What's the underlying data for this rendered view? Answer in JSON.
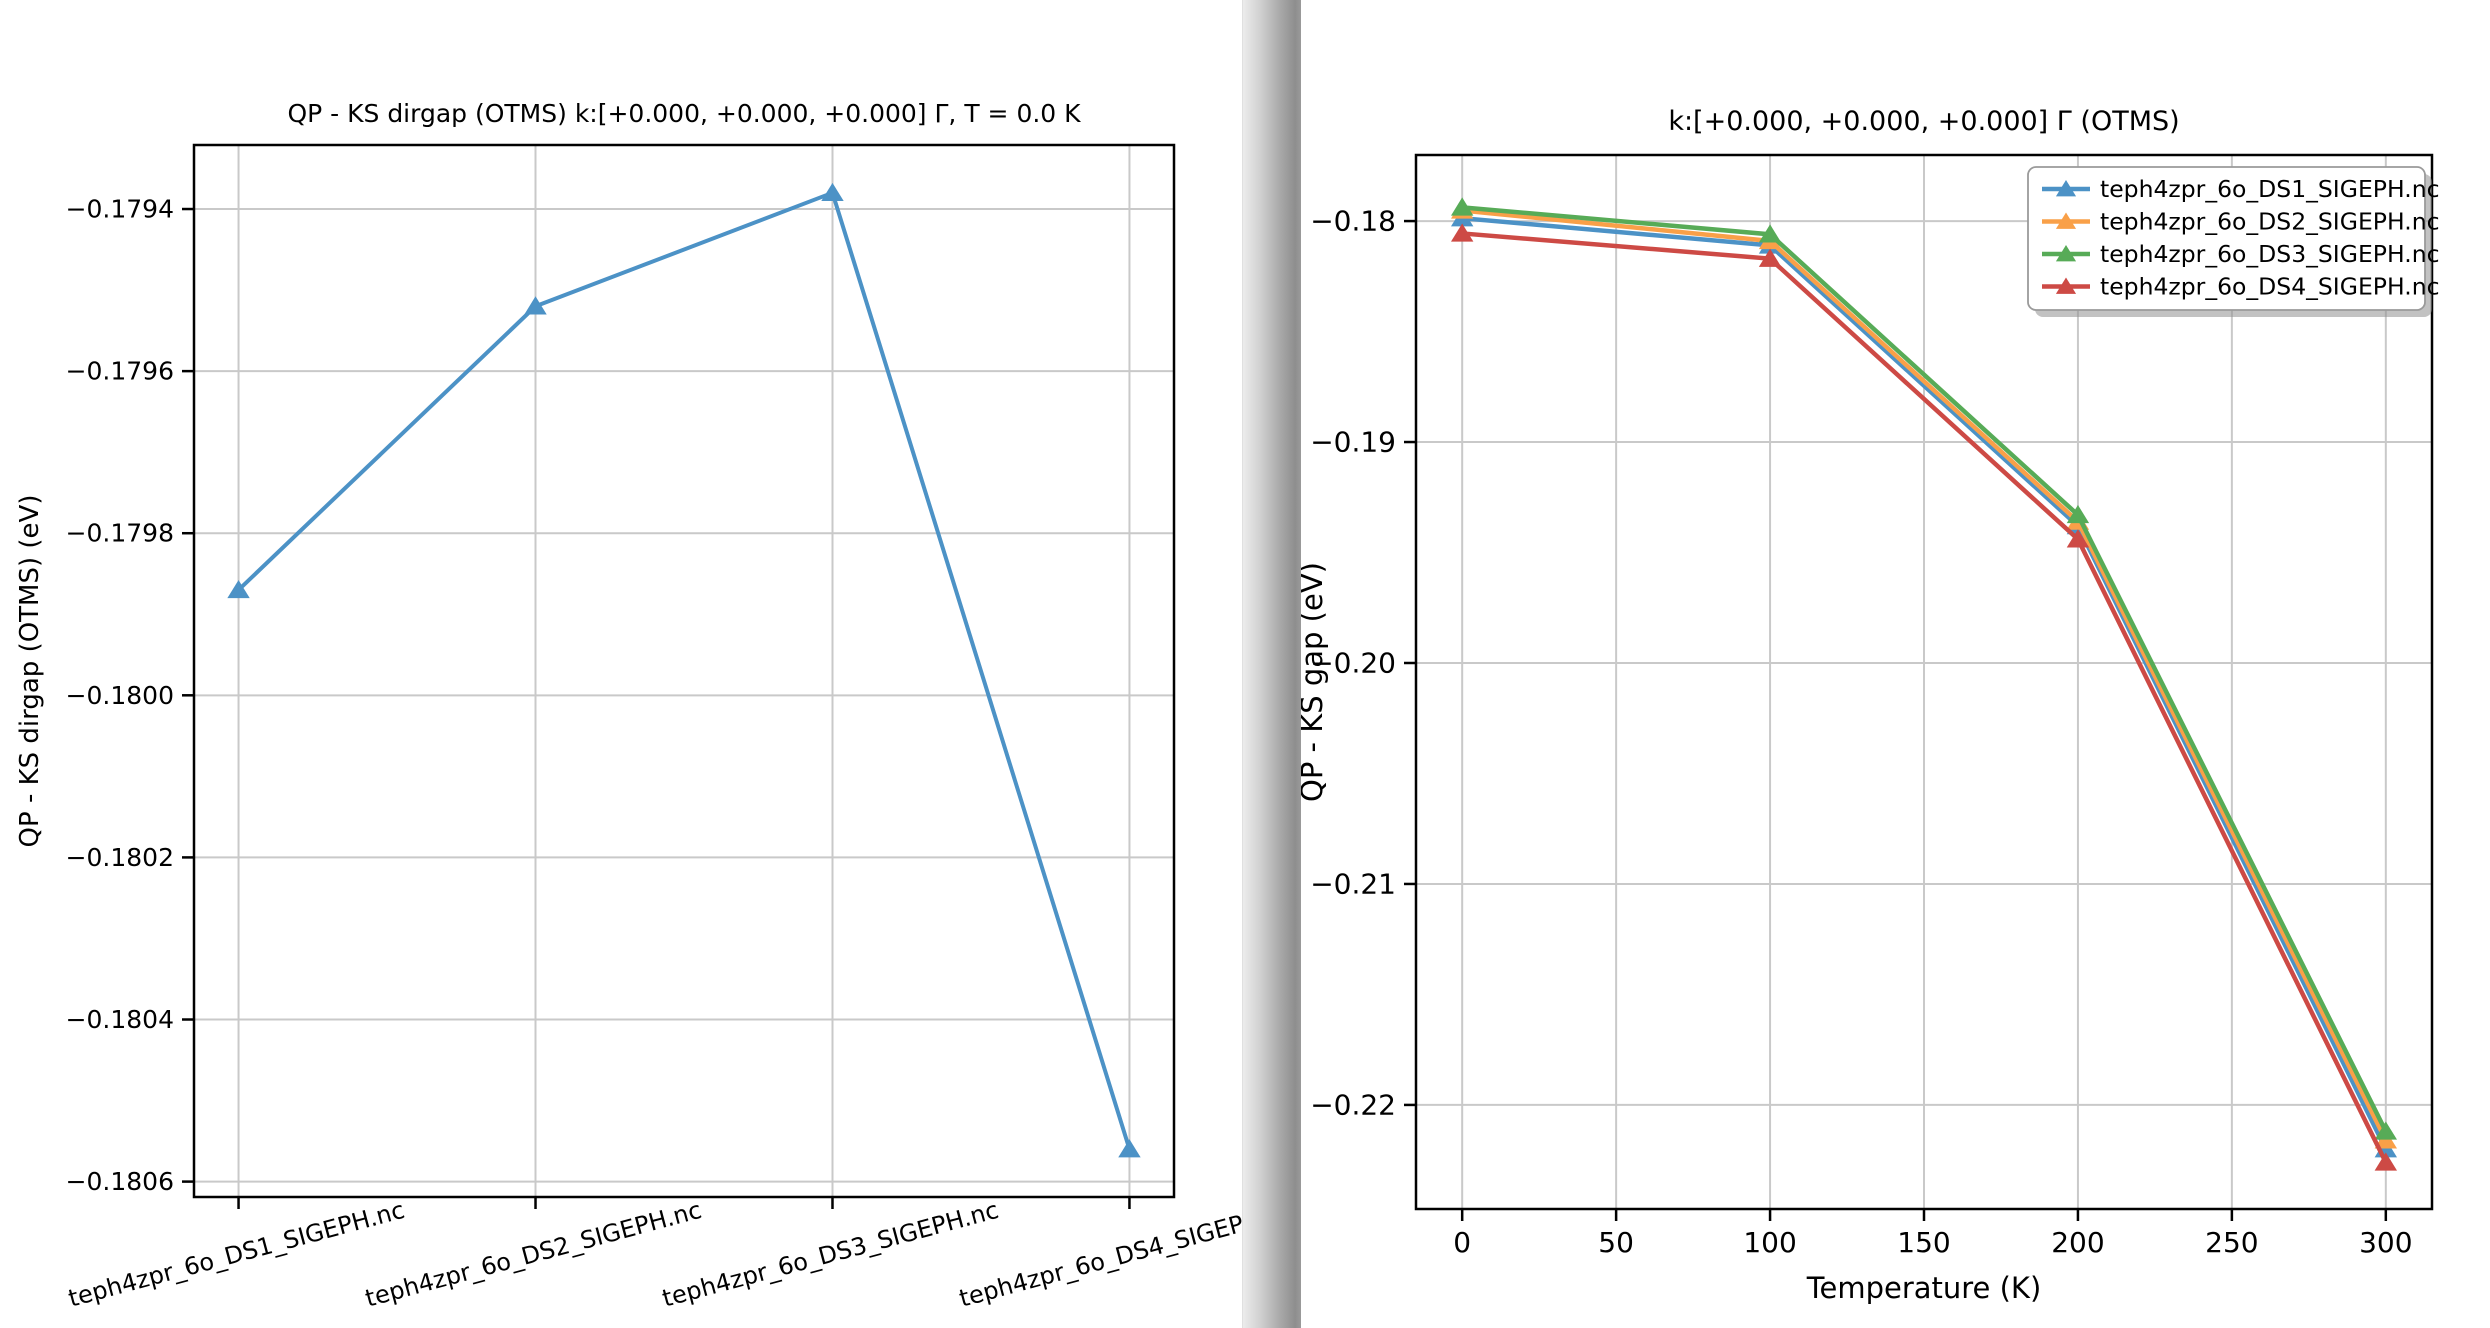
{
  "page": {
    "description": "Two matplotlib figures side by side showing QP-KS gap corrections (OTMS) for MgO e-ph calculations"
  },
  "chart_data": [
    {
      "type": "line",
      "title": "QP - KS dirgap (OTMS) k:[+0.000, +0.000, +0.000] Γ, T = 0.0 K",
      "xlabel": "",
      "ylabel": "QP - KS dirgap (OTMS) (eV)",
      "categories": [
        "teph4zpr_6o_DS1_SIGEPH.nc",
        "teph4zpr_6o_DS2_SIGEPH.nc",
        "teph4zpr_6o_DS3_SIGEPH.nc",
        "teph4zpr_6o_DS4_SIGEPH.nc"
      ],
      "values": [
        -0.17987,
        -0.17952,
        -0.17938,
        -0.18056
      ],
      "series_name": "QP - KS dirgap (OTMS)",
      "series_color": "#4c92c6",
      "marker": "triangle-up",
      "ylim": [
        -0.180619,
        -0.179321
      ],
      "yticks": [
        -0.1794,
        -0.1796,
        -0.1798,
        -0.18,
        -0.1802,
        -0.1804,
        -0.1806
      ],
      "ytick_labels": [
        "−0.1794",
        "−0.1796",
        "−0.1798",
        "−0.1800",
        "−0.1802",
        "−0.1804",
        "−0.1806"
      ],
      "xtick_rotation_deg": 15,
      "grid": true,
      "legend": null
    },
    {
      "type": "line",
      "title": "k:[+0.000, +0.000, +0.000] Γ (OTMS)",
      "xlabel": "Temperature (K)",
      "ylabel": "QP - KS gap (eV)",
      "x": [
        0,
        100,
        200,
        300
      ],
      "series": [
        {
          "name": "teph4zpr_6o_DS1_SIGEPH.nc",
          "color": "#4c92c6",
          "values": [
            -0.17987,
            -0.1811,
            -0.1938,
            -0.222
          ]
        },
        {
          "name": "teph4zpr_6o_DS2_SIGEPH.nc",
          "color": "#f9a048",
          "values": [
            -0.17952,
            -0.1809,
            -0.1936,
            -0.2216
          ]
        },
        {
          "name": "teph4zpr_6o_DS3_SIGEPH.nc",
          "color": "#57ab57",
          "values": [
            -0.17938,
            -0.1806,
            -0.1933,
            -0.2212
          ]
        },
        {
          "name": "teph4zpr_6o_DS4_SIGEPH.nc",
          "color": "#cd4a45",
          "values": [
            -0.18056,
            -0.1817,
            -0.1944,
            -0.2226
          ]
        }
      ],
      "marker": "triangle-up",
      "xlim": [
        -15,
        315
      ],
      "ylim": [
        -0.22471,
        -0.17701
      ],
      "xticks": [
        0,
        50,
        100,
        150,
        200,
        250,
        300
      ],
      "xtick_labels": [
        "0",
        "50",
        "100",
        "150",
        "200",
        "250",
        "300"
      ],
      "yticks": [
        -0.18,
        -0.19,
        -0.2,
        -0.21,
        -0.22
      ],
      "ytick_labels": [
        "−0.18",
        "−0.19",
        "−0.20",
        "−0.21",
        "−0.22"
      ],
      "grid": true,
      "legend": {
        "position": "upper right",
        "entries": [
          "teph4zpr_6o_DS1_SIGEPH.nc",
          "teph4zpr_6o_DS2_SIGEPH.nc",
          "teph4zpr_6o_DS3_SIGEPH.nc",
          "teph4zpr_6o_DS4_SIGEPH.nc"
        ]
      }
    }
  ],
  "colors": {
    "grid": "#c9c9c9",
    "spine": "#000000",
    "series_blue": "#4c92c6",
    "series_orange": "#f9a048",
    "series_green": "#57ab57",
    "series_red": "#cd4a45",
    "legend_border": "#9a9a9a",
    "legend_shadow": "#8f8f8f"
  }
}
